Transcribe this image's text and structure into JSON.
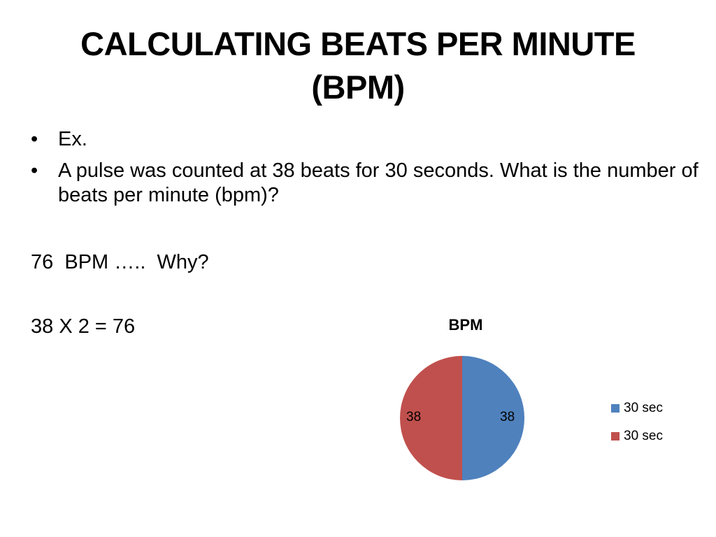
{
  "slide": {
    "title_line1": "CALCULATING BEATS PER MINUTE",
    "title_line2": "(BPM)",
    "bullets": [
      "Ex.",
      "A pulse was counted at 38 beats for 30 seconds. What is the number of beats per minute (bpm)?"
    ],
    "bullet_symbol": "•",
    "answer_line": "76  BPM …..  Why?",
    "equation_line": "38 X 2 = 76"
  },
  "chart_data": {
    "type": "pie",
    "title": "BPM",
    "categories": [
      "30 sec",
      "30 sec"
    ],
    "values": [
      38,
      38
    ],
    "colors": [
      "#4f81bd",
      "#c0504d"
    ],
    "data_labels": [
      "38",
      "38"
    ],
    "legend_placement": "right"
  }
}
